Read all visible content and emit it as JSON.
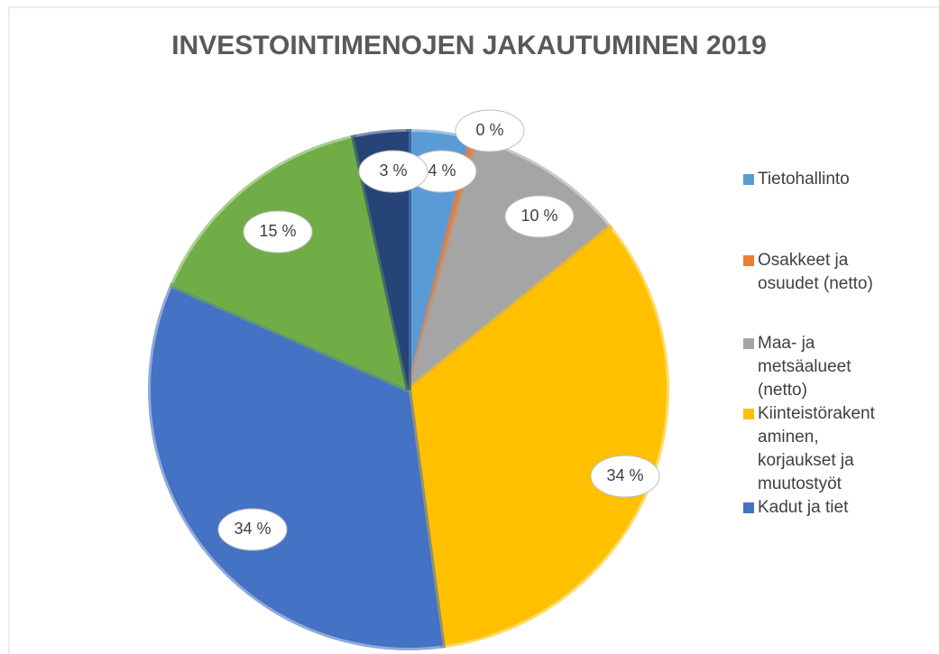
{
  "chart_data": {
    "type": "pie",
    "title": "INVESTOINTIMENOJEN JAKAUTUMINEN 2019",
    "categories": [
      "Tietohallinto",
      "Osakkeet ja osuudet (netto)",
      "Maa- ja metsäalueet (netto)",
      "Kiinteistörakentaminen, korjaukset ja muutostyöt",
      "Kadut ja tiet",
      null,
      null
    ],
    "values": [
      3.9,
      0.4,
      9.9,
      33.7,
      33.7,
      15.0,
      3.4
    ],
    "value_labels": [
      "4 %",
      "0 %",
      "10 %",
      "34 %",
      "34 %",
      "15 %",
      "3 %"
    ],
    "colors": [
      "#5b9bd5",
      "#ed7d31",
      "#a5a5a5",
      "#ffc000",
      "#4472c4",
      "#70ad47",
      "#264478"
    ],
    "legend": "right"
  }
}
